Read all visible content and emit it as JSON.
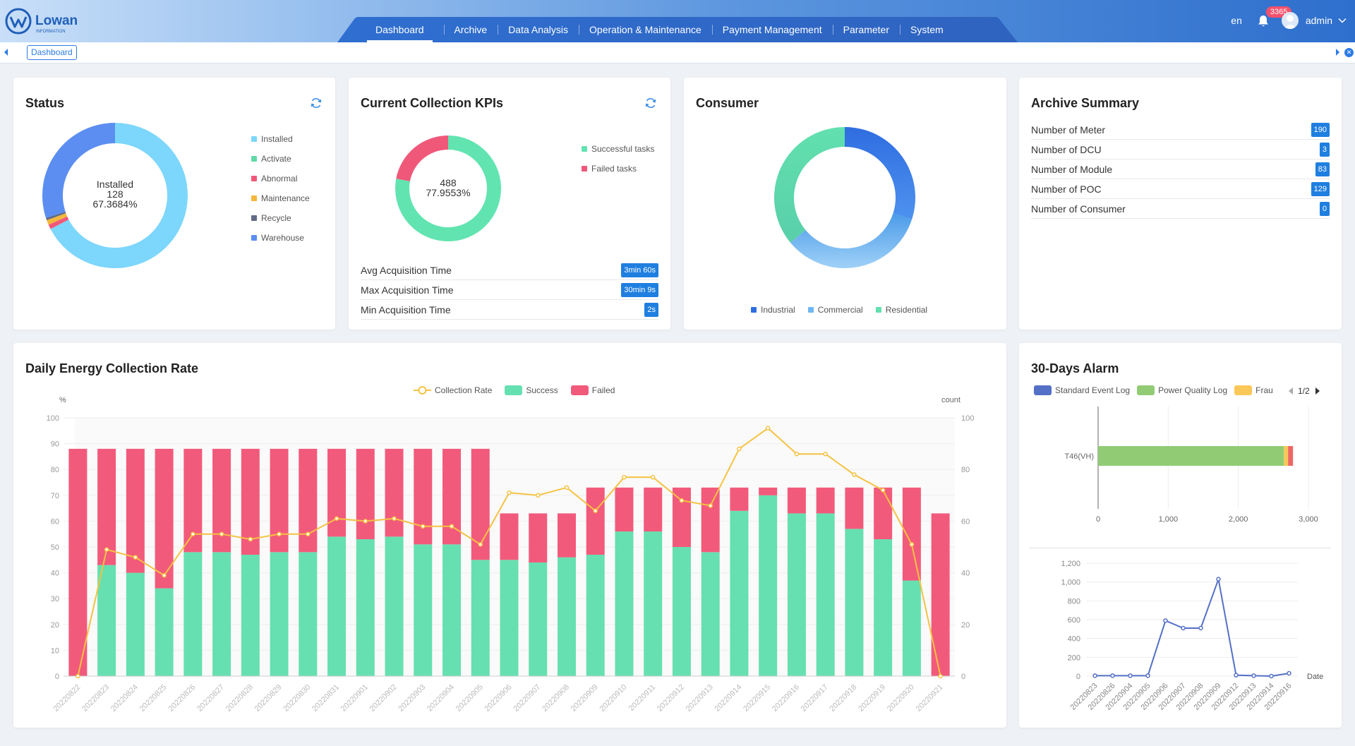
{
  "header": {
    "logo_text": "Lowan",
    "logo_sub": "INFORMATION",
    "nav": [
      "Dashboard",
      "Archive",
      "Data Analysis",
      "Operation & Maintenance",
      "Payment Management",
      "Parameter",
      "System"
    ],
    "active_nav": "Dashboard",
    "lang": "en",
    "notification_count": "3365",
    "user": "admin"
  },
  "tabs": {
    "current": "Dashboard"
  },
  "status_card": {
    "title": "Status",
    "center_label": "Installed",
    "center_value": "128",
    "center_percent": "67.3684%",
    "legend": [
      "Installed",
      "Activate",
      "Abnormal",
      "Maintenance",
      "Recycle",
      "Warehouse"
    ],
    "values": [
      128,
      0,
      2,
      2,
      1,
      57
    ],
    "colors": [
      "#7dd6fb",
      "#62d9a6",
      "#f0587a",
      "#f5b73b",
      "#606c86",
      "#5b8ef0"
    ]
  },
  "kpi_card": {
    "title": "Current Collection KPIs",
    "center_value": "488",
    "center_percent": "77.9553%",
    "legend": [
      "Successful tasks",
      "Failed tasks"
    ],
    "values": [
      488,
      138
    ],
    "colors": [
      "#62e4b0",
      "#f0587a"
    ],
    "rows": [
      {
        "label": "Avg Acquisition Time",
        "value": "3min 60s"
      },
      {
        "label": "Max Acquisition Time",
        "value": "30min 9s"
      },
      {
        "label": "Min Acquisition Time",
        "value": "2s"
      }
    ]
  },
  "consumer_card": {
    "title": "Consumer",
    "legend": [
      "Industrial",
      "Commercial",
      "Residential"
    ],
    "values": [
      30,
      34,
      36
    ],
    "colors": [
      "#2f6de0",
      "#6fb7f2",
      "#62e0ae"
    ]
  },
  "archive_card": {
    "title": "Archive Summary",
    "rows": [
      {
        "label": "Number of Meter",
        "value": "190"
      },
      {
        "label": "Number of DCU",
        "value": "3"
      },
      {
        "label": "Number of Module",
        "value": "83"
      },
      {
        "label": "Number of POC",
        "value": "129"
      },
      {
        "label": "Number of Consumer",
        "value": "0"
      }
    ]
  },
  "daily_card": {
    "title": "Daily Energy Collection Rate",
    "legend": [
      "Collection Rate",
      "Success",
      "Failed"
    ],
    "colors": {
      "rate": "#f5c242",
      "success": "#66e0b0",
      "failed": "#f25a7b"
    }
  },
  "alarm_card": {
    "title": "30-Days Alarm",
    "legend": [
      "Standard Event Log",
      "Power Quality Log",
      "Frau"
    ],
    "legend_colors": [
      "#5470c6",
      "#91cc75",
      "#fac858"
    ],
    "page": "1/2"
  },
  "chart_data": [
    {
      "type": "bar",
      "title": "Daily Energy Collection Rate",
      "ylabel_left": "%",
      "ylabel_right": "count",
      "ylim": [
        0,
        100
      ],
      "yticks": [
        0,
        10,
        20,
        30,
        40,
        50,
        60,
        70,
        80,
        90,
        100
      ],
      "y2lim": [
        0,
        100
      ],
      "y2ticks": [
        0,
        20,
        40,
        60,
        80,
        100
      ],
      "categories": [
        "20220822",
        "20220823",
        "20220824",
        "20220825",
        "20220826",
        "20220827",
        "20220828",
        "20220829",
        "20220830",
        "20220831",
        "20220901",
        "20220902",
        "20220903",
        "20220904",
        "20220905",
        "20220906",
        "20220907",
        "20220908",
        "20220909",
        "20220910",
        "20220911",
        "20220912",
        "20220913",
        "20220914",
        "20220915",
        "20220916",
        "20220917",
        "20220918",
        "20220919",
        "20220920",
        "20220921"
      ],
      "series": [
        {
          "name": "Success",
          "stack": true,
          "axis": "right",
          "values": [
            0,
            43,
            40,
            34,
            48,
            48,
            47,
            48,
            48,
            54,
            53,
            54,
            51,
            51,
            45,
            45,
            44,
            46,
            47,
            56,
            56,
            50,
            48,
            64,
            70,
            63,
            63,
            57,
            53,
            37,
            0
          ]
        },
        {
          "name": "Failed",
          "stack": true,
          "axis": "right",
          "values": [
            88,
            45,
            48,
            54,
            40,
            40,
            41,
            40,
            40,
            34,
            35,
            34,
            37,
            37,
            43,
            18,
            19,
            17,
            26,
            17,
            17,
            23,
            25,
            9,
            3,
            10,
            10,
            16,
            20,
            36,
            63
          ]
        },
        {
          "name": "Collection Rate",
          "type": "line",
          "axis": "left",
          "values": [
            0,
            49,
            46,
            39,
            55,
            55,
            53,
            55,
            55,
            61,
            60,
            61,
            58,
            58,
            51,
            71,
            70,
            73,
            64,
            77,
            77,
            68,
            66,
            88,
            96,
            86,
            86,
            78,
            72,
            51,
            0
          ]
        }
      ]
    },
    {
      "type": "bar",
      "orientation": "horizontal",
      "categories": [
        "T46(VH)"
      ],
      "xlim": [
        0,
        3000
      ],
      "xticks": [
        "0",
        "1,000",
        "2,000",
        "3,000"
      ],
      "series": [
        {
          "name": "Standard Event Log",
          "values": [
            0
          ]
        },
        {
          "name": "Power Quality Log",
          "values": [
            2650
          ]
        },
        {
          "name": "Frau",
          "values": [
            60
          ]
        },
        {
          "name": "other",
          "values": [
            70
          ]
        }
      ]
    },
    {
      "type": "line",
      "xlabel": "Date",
      "ylim": [
        0,
        1200
      ],
      "yticks": [
        "0",
        "200",
        "400",
        "600",
        "800",
        "1,000",
        "1,200"
      ],
      "x": [
        "20220823",
        "20220826",
        "20220904",
        "20220905",
        "20220906",
        "20220907",
        "20220908",
        "20220909",
        "20220912",
        "20220913",
        "20220914",
        "20220916"
      ],
      "values": [
        5,
        5,
        5,
        5,
        590,
        510,
        510,
        1030,
        10,
        5,
        0,
        30
      ]
    }
  ]
}
